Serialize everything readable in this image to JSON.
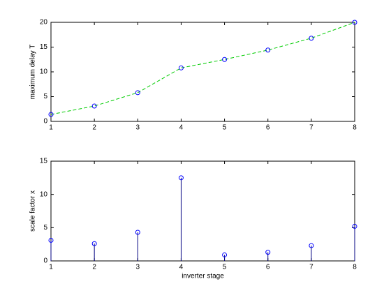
{
  "chart_data": [
    {
      "type": "line",
      "y_label": "maximum delay T",
      "x": [
        1,
        2,
        3,
        4,
        5,
        6,
        7,
        8
      ],
      "values": [
        1.4,
        3.1,
        5.8,
        10.8,
        12.5,
        14.4,
        16.8,
        20
      ],
      "color": "#00cc00",
      "linestyle": "dashed",
      "marker_color": "#0000ff",
      "xlim": [
        1,
        8
      ],
      "xticks": [
        1,
        2,
        3,
        4,
        5,
        6,
        7,
        8
      ],
      "ylim": [
        0,
        20
      ],
      "yticks": [
        0,
        5,
        10,
        15,
        20
      ]
    },
    {
      "type": "stem",
      "x_label": "inverter stage",
      "y_label": "scale factor x",
      "x": [
        1,
        2,
        3,
        4,
        5,
        6,
        7,
        8
      ],
      "values": [
        3.1,
        2.6,
        4.3,
        12.5,
        0.9,
        1.3,
        2.3,
        5.2
      ],
      "color": "#000080",
      "marker_color": "#0000ff",
      "xlim": [
        1,
        8
      ],
      "xticks": [
        1,
        2,
        3,
        4,
        5,
        6,
        7,
        8
      ],
      "ylim": [
        0,
        15
      ],
      "yticks": [
        0,
        5,
        10,
        15
      ]
    }
  ]
}
